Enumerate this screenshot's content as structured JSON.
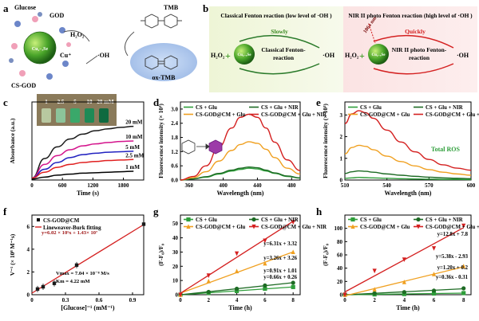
{
  "panels": {
    "a": {
      "letter": "a",
      "glucose": "Glucose",
      "god": "GOD",
      "h2o2": "H₂O₂",
      "cu_plus": "Cu⁺",
      "np": "Cu₂₋ₓSe",
      "cs_god": "CS-GOD",
      "tmb": "TMB",
      "oh": "·OH",
      "ox_tmb": "ox-TMB"
    },
    "b": {
      "letter": "b",
      "left_title": "Classical Fenton reaction (low level of ·OH )",
      "left_speed": "Slowly",
      "left_reaction": "Classical Fenton-reaction",
      "right_title": "NIR II photo Fenton reaction (high level of ·OH )",
      "right_speed": "Quickly",
      "laser": "1064 nm",
      "right_reaction": "NIR II photo Fenton-reaction",
      "h2o2": "H₂O₂",
      "oh": "·OH",
      "np": "Cu₂₋ₓSe"
    },
    "c": {
      "letter": "c",
      "photo_labels": [
        "1",
        "2.5",
        "5",
        "10",
        "20 mM"
      ]
    },
    "d": {
      "letter": "d"
    },
    "e": {
      "letter": "e",
      "annotation": "Total ROS"
    },
    "f": {
      "letter": "f",
      "equation": "y=6.02 × 10⁵x + 1.43× 10⁷",
      "vmax": "Vmax = 7.04 × 10⁻⁸ M/s",
      "km": "Km = 4.22 mM"
    },
    "g": {
      "letter": "g"
    },
    "h": {
      "letter": "h"
    }
  },
  "chart_data": [
    {
      "id": "c",
      "type": "line",
      "xlabel": "Time (s)",
      "ylabel": "Absorbance (a.u.)",
      "xlim": [
        0,
        2200
      ],
      "ylim": [
        0,
        0.8
      ],
      "xticks": [
        0,
        600,
        1200,
        1800
      ],
      "yticks": [],
      "series": [
        {
          "name": "20 mM",
          "color": "#1a1a1a",
          "values": [
            0.02,
            0.22,
            0.34,
            0.42,
            0.47,
            0.505,
            0.525,
            0.54,
            0.55
          ]
        },
        {
          "name": "10 mM",
          "color": "#d4148c",
          "values": [
            0.02,
            0.16,
            0.25,
            0.31,
            0.35,
            0.37,
            0.385,
            0.395,
            0.4
          ]
        },
        {
          "name": "5 mM",
          "color": "#2222c0",
          "values": [
            0.02,
            0.11,
            0.18,
            0.23,
            0.26,
            0.275,
            0.285,
            0.29,
            0.295
          ]
        },
        {
          "name": "2.5 mM",
          "color": "#e02020",
          "values": [
            0.02,
            0.08,
            0.13,
            0.16,
            0.18,
            0.19,
            0.2,
            0.205,
            0.21
          ]
        },
        {
          "name": "1 mM",
          "color": "#000000",
          "values": [
            0.01,
            0.03,
            0.05,
            0.06,
            0.07,
            0.075,
            0.08,
            0.085,
            0.09
          ]
        }
      ],
      "x": [
        0,
        250,
        500,
        750,
        1000,
        1250,
        1500,
        1750,
        2000
      ]
    },
    {
      "id": "d",
      "type": "line",
      "xlabel": "Wavelength (nm)",
      "ylabel": "Fluorescence intensity (× 10³)",
      "xlim": [
        350,
        490
      ],
      "ylim": [
        0,
        3.3
      ],
      "xticks": [
        360,
        400,
        440,
        480
      ],
      "yticks": [
        0.0,
        0.6,
        1.2,
        1.8,
        2.4,
        3.0
      ],
      "x": [
        350,
        365,
        380,
        395,
        410,
        420,
        430,
        440,
        450,
        460,
        475,
        490
      ],
      "series": [
        {
          "name": "CS + Glu",
          "color": "#2e9e3a",
          "values": [
            0.0,
            0.05,
            0.12,
            0.25,
            0.38,
            0.45,
            0.5,
            0.47,
            0.38,
            0.28,
            0.15,
            0.08
          ]
        },
        {
          "name": "CS + Glu + NIR",
          "color": "#1d6b24",
          "values": [
            0.0,
            0.05,
            0.14,
            0.28,
            0.42,
            0.5,
            0.55,
            0.52,
            0.42,
            0.3,
            0.17,
            0.09
          ]
        },
        {
          "name": "CS-GOD@CM + Glu",
          "color": "#f0a020",
          "values": [
            0.0,
            0.1,
            0.35,
            0.8,
            1.25,
            1.5,
            1.62,
            1.55,
            1.3,
            0.95,
            0.5,
            0.25
          ]
        },
        {
          "name": "CS-GOD@CM + Glu + NIR",
          "color": "#d42020",
          "values": [
            0.0,
            0.15,
            0.6,
            1.4,
            2.2,
            2.65,
            2.78,
            2.65,
            2.2,
            1.6,
            0.85,
            0.4
          ]
        }
      ]
    },
    {
      "id": "e",
      "type": "line",
      "xlabel": "Wavelength (nm)",
      "ylabel": "Fluorescence intensity (× 10³)",
      "xlim": [
        510,
        600
      ],
      "ylim": [
        0,
        3.6
      ],
      "xticks": [
        510,
        540,
        570,
        600
      ],
      "yticks": [
        0,
        1,
        2,
        3
      ],
      "x": [
        510,
        515,
        520,
        525,
        530,
        540,
        550,
        560,
        570,
        580,
        590,
        600
      ],
      "series": [
        {
          "name": "CS + Glu",
          "color": "#2e9e3a",
          "values": [
            0.08,
            0.1,
            0.12,
            0.11,
            0.1,
            0.08,
            0.06,
            0.05,
            0.04,
            0.03,
            0.03,
            0.02
          ]
        },
        {
          "name": "CS + Glu + NIR",
          "color": "#1d6b24",
          "values": [
            0.3,
            0.38,
            0.42,
            0.4,
            0.36,
            0.28,
            0.22,
            0.17,
            0.13,
            0.1,
            0.08,
            0.06
          ]
        },
        {
          "name": "CS-GOD@CM + Glu",
          "color": "#f0a020",
          "values": [
            1.2,
            1.5,
            1.6,
            1.55,
            1.4,
            1.1,
            0.85,
            0.65,
            0.48,
            0.36,
            0.28,
            0.22
          ]
        },
        {
          "name": "CS-GOD@CM + Glu + NIR",
          "color": "#d42020",
          "values": [
            2.6,
            3.05,
            3.2,
            3.1,
            2.85,
            2.3,
            1.75,
            1.3,
            0.95,
            0.7,
            0.55,
            0.45
          ]
        }
      ]
    },
    {
      "id": "f",
      "type": "scatter",
      "xlabel": "[Glucose]⁻¹ (mM⁻¹)",
      "ylabel": "V⁻¹ (× 10⁸ M⁻¹s)",
      "xlim": [
        0,
        1.0
      ],
      "ylim": [
        0,
        7
      ],
      "xticks": [
        0.0,
        0.3,
        0.6,
        0.9
      ],
      "yticks": [
        0,
        2,
        4,
        6
      ],
      "series": [
        {
          "name": "CS-GOD@CM",
          "color": "#1a1a1a",
          "x": [
            0.05,
            0.1,
            0.2,
            0.4,
            1.0
          ],
          "values": [
            0.5,
            0.7,
            1.0,
            2.6,
            6.2
          ]
        },
        {
          "name": "Lineweaver-Burk fitting",
          "color": "#d42020",
          "x": [
            0.0,
            1.0
          ],
          "values": [
            0.14,
            6.16
          ]
        }
      ]
    },
    {
      "id": "g",
      "type": "scatter",
      "xlabel": "Time (h)",
      "ylabel": "(F-F₀)/F₀",
      "xlim": [
        0,
        8.5
      ],
      "ylim": [
        0,
        56
      ],
      "xticks": [
        0,
        2,
        4,
        6,
        8
      ],
      "yticks": [
        0,
        10,
        20,
        30,
        40,
        50
      ],
      "x": [
        0,
        2,
        4,
        6,
        8
      ],
      "series": [
        {
          "name": "CS + Glu",
          "color": "#2e9e3a",
          "marker": "square",
          "values": [
            0,
            1.3,
            2.6,
            4.2,
            5.4
          ]
        },
        {
          "name": "CS + Glu + NIR",
          "color": "#1d6b24",
          "marker": "circle",
          "values": [
            0,
            2.0,
            4.2,
            6.5,
            8.4
          ]
        },
        {
          "name": "CS-GOD@CM + Glu",
          "color": "#f0a020",
          "marker": "triangle",
          "values": [
            0,
            9.5,
            16.5,
            22,
            30
          ]
        },
        {
          "name": "CS-GOD@CM + Glu + NIR",
          "color": "#d42020",
          "marker": "triangle-down",
          "values": [
            0,
            13.5,
            29,
            38,
            51
          ]
        }
      ],
      "fits": [
        "y=6.31x + 3.32",
        "y=3.26x + 3.26",
        "y=0.91x + 1.01",
        "y=0.66x + 0.26"
      ]
    },
    {
      "id": "h",
      "type": "scatter",
      "xlabel": "Time (h)",
      "ylabel": "(F-F₀)/F₀",
      "xlim": [
        0,
        8.5
      ],
      "ylim": [
        0,
        120
      ],
      "xticks": [
        0,
        2,
        4,
        6,
        8
      ],
      "yticks": [
        0,
        20,
        40,
        60,
        80,
        100
      ],
      "x": [
        0,
        2,
        4,
        6,
        8
      ],
      "series": [
        {
          "name": "CS + Glu",
          "color": "#2e9e3a",
          "marker": "square",
          "values": [
            0,
            0.5,
            1.0,
            1.8,
            2.4
          ]
        },
        {
          "name": "CS + Glu + NIR",
          "color": "#1d6b24",
          "marker": "circle",
          "values": [
            0,
            2.2,
            4.0,
            6.2,
            9.6
          ]
        },
        {
          "name": "CS-GOD@CM + Glu",
          "color": "#f0a020",
          "marker": "triangle",
          "values": [
            0,
            8,
            19,
            31,
            43
          ]
        },
        {
          "name": "CS-GOD@CM + Glu + NIR",
          "color": "#d42020",
          "marker": "triangle-down",
          "values": [
            0,
            36,
            53,
            70,
            104
          ]
        }
      ],
      "fits": [
        "y=12.8x + 7.8",
        "y=5.38x - 2.93",
        "y=1.20x + 0.2",
        "y=0.36x - 0.31"
      ]
    }
  ]
}
